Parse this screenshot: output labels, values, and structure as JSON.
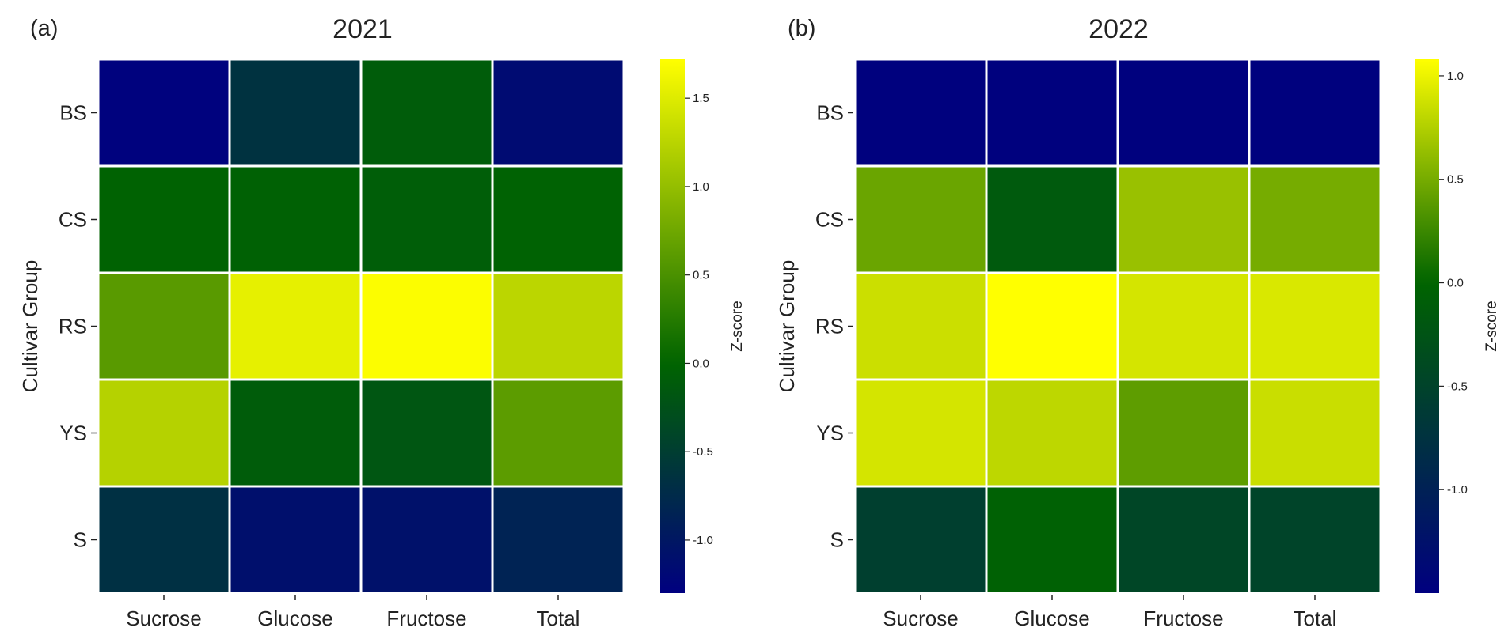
{
  "colors": {
    "colormap_stops": [
      "#000080",
      "#006400",
      "#ffff00"
    ],
    "cell_border": "#ffffff",
    "text": "#222222"
  },
  "chart_data": [
    {
      "type": "heatmap",
      "panel_label": "(a)",
      "title": "2021",
      "ylabel": "Cultivar Group",
      "colorbar_label": "Z-score",
      "x_categories": [
        "Sucrose",
        "Glucose",
        "Fructose",
        "Total"
      ],
      "y_categories": [
        "BS",
        "CS",
        "RS",
        "YS",
        "S"
      ],
      "values": [
        [
          -1.28,
          -0.65,
          -0.1,
          -1.16
        ],
        [
          -0.02,
          -0.04,
          -0.08,
          -0.03
        ],
        [
          0.6,
          1.55,
          1.7,
          1.26
        ],
        [
          1.22,
          -0.1,
          -0.18,
          0.62
        ],
        [
          -0.68,
          -1.1,
          -1.08,
          -0.85
        ]
      ],
      "vmin": -1.3,
      "vcenter": 0.0,
      "vmax": 1.72,
      "colorbar_ticks": [
        -1.0,
        -0.5,
        0.0,
        0.5,
        1.0,
        1.5
      ],
      "colorbar_tick_labels": [
        "-1.0",
        "-0.5",
        "0.0",
        "0.5",
        "1.0",
        "1.5"
      ]
    },
    {
      "type": "heatmap",
      "panel_label": "(b)",
      "title": "2022",
      "ylabel": "Cultivar Group",
      "colorbar_label": "Z-score",
      "x_categories": [
        "Sucrose",
        "Glucose",
        "Fructose",
        "Total"
      ],
      "y_categories": [
        "BS",
        "CS",
        "RS",
        "YS",
        "S"
      ],
      "values": [
        [
          -1.48,
          -1.48,
          -1.48,
          -1.48
        ],
        [
          0.45,
          -0.15,
          0.65,
          0.5
        ],
        [
          0.86,
          1.08,
          0.9,
          0.92
        ],
        [
          0.9,
          0.8,
          0.4,
          0.85
        ],
        [
          -0.55,
          -0.05,
          -0.45,
          -0.48
        ]
      ],
      "vmin": -1.5,
      "vcenter": 0.0,
      "vmax": 1.08,
      "colorbar_ticks": [
        -1.0,
        -0.5,
        0.0,
        0.5,
        1.0
      ],
      "colorbar_tick_labels": [
        "-1.0",
        "-0.5",
        "0.0",
        "0.5",
        "1.0"
      ]
    }
  ]
}
